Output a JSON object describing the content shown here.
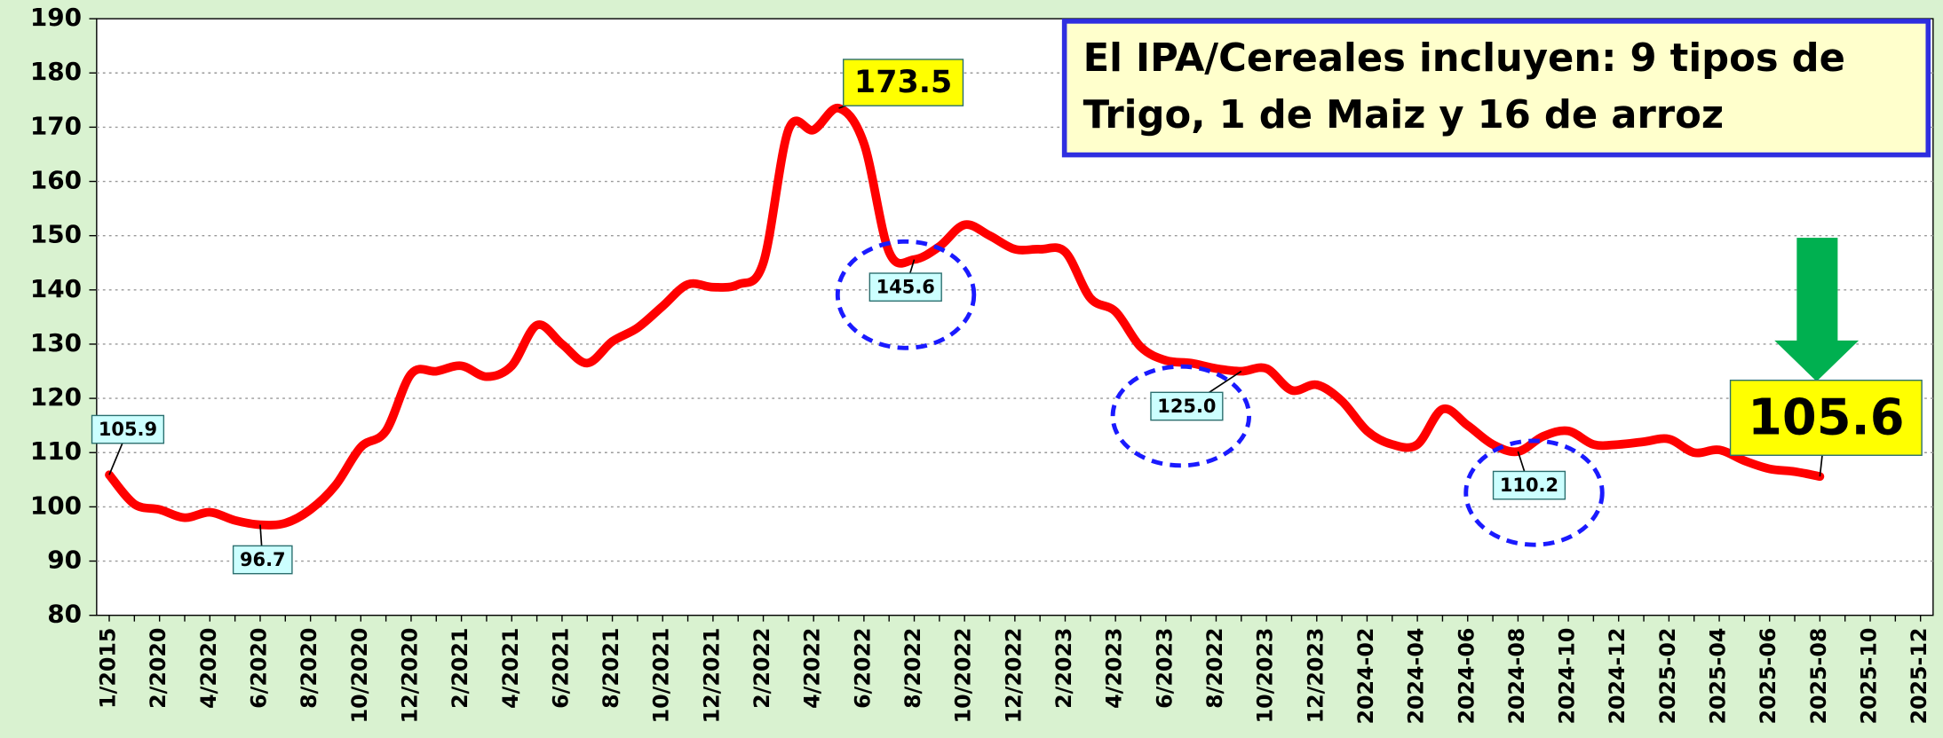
{
  "chart_data": {
    "type": "line",
    "annotation": [
      "El IPA/Cereales incluyen: 9 tipos de",
      "Trigo, 1 de Maiz y 16 de arroz"
    ],
    "categories": [
      "1/2015",
      null,
      "2/2020",
      null,
      "4/2020",
      null,
      "6/2020",
      null,
      "8/2020",
      null,
      "10/2020",
      null,
      "12/2020",
      null,
      "2/2021",
      null,
      "4/2021",
      null,
      "6/2021",
      null,
      "8/2021",
      null,
      "10/2021",
      null,
      "12/2021",
      null,
      "2/2022",
      null,
      "4/2022",
      null,
      "6/2022",
      null,
      "8/2022",
      null,
      "10/2022",
      null,
      "12/2022",
      null,
      "2/2023",
      null,
      "4/2023",
      null,
      "6/2023",
      null,
      "8/2022",
      null,
      "10/2023",
      null,
      "12/2023",
      null,
      "2024-02",
      null,
      "2024-04",
      null,
      "2024-06",
      null,
      "2024-08",
      null,
      "2024-10",
      null,
      "2024-12",
      null,
      "2025-02",
      null,
      "2025-04",
      null,
      "2025-06",
      null,
      "2025-08",
      null,
      "2025-10",
      null,
      "2025-12"
    ],
    "series": [
      {
        "color": "#ff0000",
        "values": [
          105.9,
          100.5,
          99.5,
          98,
          99,
          97.5,
          96.7,
          97,
          99.5,
          104,
          111,
          114,
          124.5,
          125,
          126,
          124,
          126,
          133.5,
          130,
          126.5,
          130.5,
          133,
          137,
          141,
          140.5,
          141,
          145,
          169.5,
          169.5,
          173.5,
          167,
          147,
          145.6,
          148,
          152,
          150,
          147.5,
          147.5,
          147,
          138.5,
          136,
          129.5,
          127,
          126.5,
          125.5,
          125.0,
          125.5,
          121.5,
          122.5,
          119.5,
          114,
          111.5,
          111.5,
          118,
          115,
          111.5,
          110.2,
          113,
          114,
          111.5,
          111.5,
          112,
          112.5,
          110,
          110.5,
          108.5,
          107,
          106.5,
          105.6,
          null,
          null,
          null,
          null
        ],
        "value_labels": [
          "105.9",
          null,
          null,
          null,
          null,
          null,
          "96.7",
          null,
          null,
          null,
          null,
          null,
          null,
          null,
          null,
          null,
          null,
          null,
          null,
          null,
          null,
          null,
          null,
          null,
          null,
          null,
          null,
          null,
          null,
          "173.5",
          null,
          null,
          "145.6",
          null,
          null,
          null,
          null,
          null,
          null,
          null,
          null,
          null,
          null,
          null,
          null,
          "125.0",
          null,
          null,
          null,
          null,
          null,
          null,
          null,
          null,
          null,
          null,
          "110.2",
          null,
          null,
          null,
          null,
          null,
          null,
          null,
          null,
          null,
          null,
          null,
          "105.6",
          null,
          null,
          null,
          null
        ]
      }
    ],
    "ylim": [
      80,
      190
    ],
    "yticks": [
      80,
      90,
      100,
      110,
      120,
      130,
      140,
      150,
      160,
      170,
      180,
      190
    ],
    "grid": true
  }
}
